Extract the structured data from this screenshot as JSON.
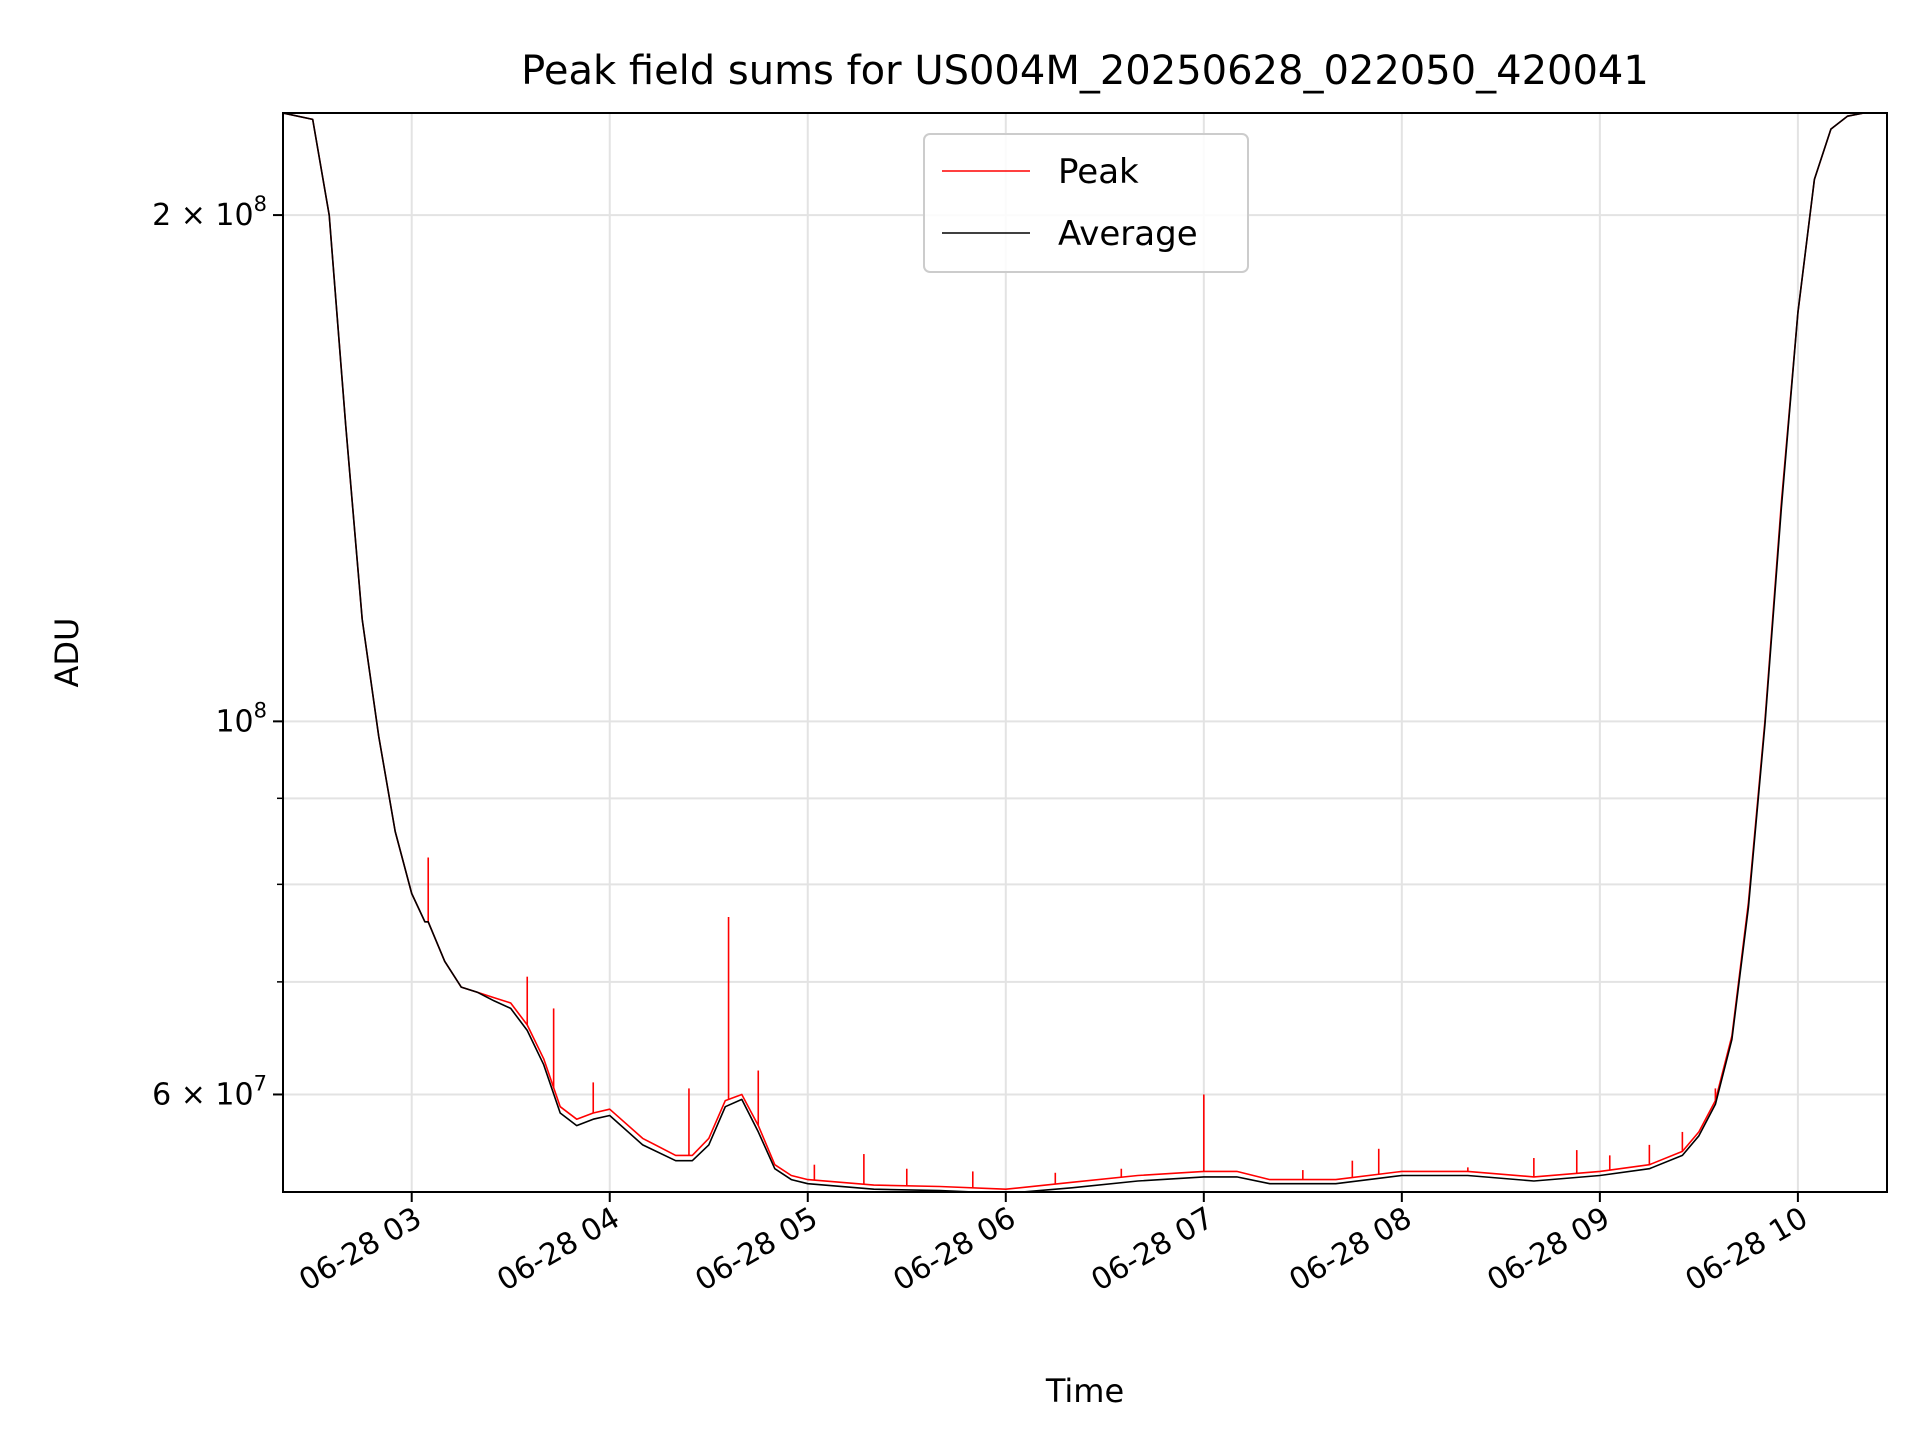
{
  "chart_data": {
    "type": "line",
    "title": "Peak field sums for US004M_20250628_022050_420041",
    "xlabel": "Time",
    "ylabel": "ADU",
    "y_scale": "log",
    "ylim": [
      52500000,
      230000000
    ],
    "x_format": "MM-DD HH",
    "xlim": [
      "2025-06-28T02:21:00",
      "2025-06-28T10:27:00"
    ],
    "x_ticks": [
      {
        "value": "2025-06-28T03:00:00",
        "label": "06-28 03"
      },
      {
        "value": "2025-06-28T04:00:00",
        "label": "06-28 04"
      },
      {
        "value": "2025-06-28T05:00:00",
        "label": "06-28 05"
      },
      {
        "value": "2025-06-28T06:00:00",
        "label": "06-28 06"
      },
      {
        "value": "2025-06-28T07:00:00",
        "label": "06-28 07"
      },
      {
        "value": "2025-06-28T08:00:00",
        "label": "06-28 08"
      },
      {
        "value": "2025-06-28T09:00:00",
        "label": "06-28 09"
      },
      {
        "value": "2025-06-28T10:00:00",
        "label": "06-28 10"
      }
    ],
    "y_ticks": [
      {
        "value": 60000000,
        "base": "6",
        "exp": "7"
      },
      {
        "value": 100000000,
        "base": "",
        "exp": "8"
      },
      {
        "value": 200000000,
        "base": "2",
        "exp": "8"
      }
    ],
    "y_minor_ticks": [
      70000000,
      80000000,
      90000000
    ],
    "grid": true,
    "legend_position": "top-center",
    "series": [
      {
        "name": "Peak",
        "color": "#ff0000",
        "x": [
          "2025-06-28T02:21:00",
          "2025-06-28T02:30:00",
          "2025-06-28T02:35:00",
          "2025-06-28T02:40:00",
          "2025-06-28T02:45:00",
          "2025-06-28T02:50:00",
          "2025-06-28T02:55:00",
          "2025-06-28T03:00:00",
          "2025-06-28T03:04:00",
          "2025-06-28T03:05:00",
          "2025-06-28T03:10:00",
          "2025-06-28T03:15:00",
          "2025-06-28T03:20:00",
          "2025-06-28T03:25:00",
          "2025-06-28T03:30:00",
          "2025-06-28T03:35:00",
          "2025-06-28T03:40:00",
          "2025-06-28T03:45:00",
          "2025-06-28T03:50:00",
          "2025-06-28T03:55:00",
          "2025-06-28T04:00:00",
          "2025-06-28T04:10:00",
          "2025-06-28T04:20:00",
          "2025-06-28T04:25:00",
          "2025-06-28T04:30:00",
          "2025-06-28T04:35:00",
          "2025-06-28T04:40:00",
          "2025-06-28T04:45:00",
          "2025-06-28T04:50:00",
          "2025-06-28T04:55:00",
          "2025-06-28T05:00:00",
          "2025-06-28T05:20:00",
          "2025-06-28T05:40:00",
          "2025-06-28T06:00:00",
          "2025-06-28T06:20:00",
          "2025-06-28T06:40:00",
          "2025-06-28T07:00:00",
          "2025-06-28T07:10:00",
          "2025-06-28T07:20:00",
          "2025-06-28T07:40:00",
          "2025-06-28T08:00:00",
          "2025-06-28T08:20:00",
          "2025-06-28T08:40:00",
          "2025-06-28T09:00:00",
          "2025-06-28T09:15:00",
          "2025-06-28T09:25:00",
          "2025-06-28T09:30:00",
          "2025-06-28T09:35:00",
          "2025-06-28T09:40:00",
          "2025-06-28T09:45:00",
          "2025-06-28T09:50:00",
          "2025-06-28T09:55:00",
          "2025-06-28T10:00:00",
          "2025-06-28T10:05:00",
          "2025-06-28T10:10:00",
          "2025-06-28T10:15:00",
          "2025-06-28T10:20:00",
          "2025-06-28T10:27:00"
        ],
        "y": [
          230000000,
          228000000,
          200000000,
          150000000,
          115000000,
          98000000,
          86000000,
          79000000,
          76000000,
          76000000,
          72000000,
          69500000,
          69000000,
          68500000,
          68000000,
          66000000,
          63000000,
          59000000,
          58000000,
          58500000,
          58800000,
          56500000,
          55200000,
          55200000,
          56500000,
          59500000,
          60000000,
          57500000,
          54500000,
          53700000,
          53400000,
          53000000,
          52900000,
          52700000,
          53200000,
          53700000,
          54000000,
          54000000,
          53400000,
          53400000,
          54000000,
          54000000,
          53600000,
          54000000,
          54500000,
          55500000,
          57000000,
          59500000,
          65000000,
          78000000,
          100000000,
          135000000,
          175000000,
          210000000,
          225000000,
          229000000,
          230000000,
          230000000
        ],
        "spikes": [
          {
            "x": "2025-06-28T03:05:00",
            "y": 83000000
          },
          {
            "x": "2025-06-28T03:35:00",
            "y": 70500000
          },
          {
            "x": "2025-06-28T03:43:00",
            "y": 67500000
          },
          {
            "x": "2025-06-28T03:55:00",
            "y": 61000000
          },
          {
            "x": "2025-06-28T04:24:00",
            "y": 60500000
          },
          {
            "x": "2025-06-28T04:36:00",
            "y": 76500000
          },
          {
            "x": "2025-06-28T04:45:00",
            "y": 62000000
          },
          {
            "x": "2025-06-28T05:02:00",
            "y": 54500000
          },
          {
            "x": "2025-06-28T05:17:00",
            "y": 55300000
          },
          {
            "x": "2025-06-28T05:30:00",
            "y": 54200000
          },
          {
            "x": "2025-06-28T05:50:00",
            "y": 54000000
          },
          {
            "x": "2025-06-28T06:15:00",
            "y": 53900000
          },
          {
            "x": "2025-06-28T06:35:00",
            "y": 54200000
          },
          {
            "x": "2025-06-28T07:00:00",
            "y": 60000000
          },
          {
            "x": "2025-06-28T07:30:00",
            "y": 54100000
          },
          {
            "x": "2025-06-28T07:45:00",
            "y": 54800000
          },
          {
            "x": "2025-06-28T07:53:00",
            "y": 55700000
          },
          {
            "x": "2025-06-28T08:20:00",
            "y": 54300000
          },
          {
            "x": "2025-06-28T08:40:00",
            "y": 55000000
          },
          {
            "x": "2025-06-28T08:53:00",
            "y": 55600000
          },
          {
            "x": "2025-06-28T09:03:00",
            "y": 55200000
          },
          {
            "x": "2025-06-28T09:15:00",
            "y": 56000000
          },
          {
            "x": "2025-06-28T09:25:00",
            "y": 57000000
          },
          {
            "x": "2025-06-28T09:35:00",
            "y": 60500000
          }
        ]
      },
      {
        "name": "Average",
        "color": "#000000",
        "x": [
          "2025-06-28T02:21:00",
          "2025-06-28T02:30:00",
          "2025-06-28T02:35:00",
          "2025-06-28T02:40:00",
          "2025-06-28T02:45:00",
          "2025-06-28T02:50:00",
          "2025-06-28T02:55:00",
          "2025-06-28T03:00:00",
          "2025-06-28T03:04:00",
          "2025-06-28T03:05:00",
          "2025-06-28T03:10:00",
          "2025-06-28T03:15:00",
          "2025-06-28T03:20:00",
          "2025-06-28T03:25:00",
          "2025-06-28T03:30:00",
          "2025-06-28T03:35:00",
          "2025-06-28T03:40:00",
          "2025-06-28T03:45:00",
          "2025-06-28T03:50:00",
          "2025-06-28T03:55:00",
          "2025-06-28T04:00:00",
          "2025-06-28T04:10:00",
          "2025-06-28T04:20:00",
          "2025-06-28T04:25:00",
          "2025-06-28T04:30:00",
          "2025-06-28T04:35:00",
          "2025-06-28T04:40:00",
          "2025-06-28T04:45:00",
          "2025-06-28T04:50:00",
          "2025-06-28T04:55:00",
          "2025-06-28T05:00:00",
          "2025-06-28T05:20:00",
          "2025-06-28T05:40:00",
          "2025-06-28T06:00:00",
          "2025-06-28T06:20:00",
          "2025-06-28T06:40:00",
          "2025-06-28T07:00:00",
          "2025-06-28T07:10:00",
          "2025-06-28T07:20:00",
          "2025-06-28T07:40:00",
          "2025-06-28T08:00:00",
          "2025-06-28T08:20:00",
          "2025-06-28T08:40:00",
          "2025-06-28T09:00:00",
          "2025-06-28T09:15:00",
          "2025-06-28T09:25:00",
          "2025-06-28T09:30:00",
          "2025-06-28T09:35:00",
          "2025-06-28T09:40:00",
          "2025-06-28T09:45:00",
          "2025-06-28T09:50:00",
          "2025-06-28T09:55:00",
          "2025-06-28T10:00:00",
          "2025-06-28T10:05:00",
          "2025-06-28T10:10:00",
          "2025-06-28T10:15:00",
          "2025-06-28T10:20:00",
          "2025-06-28T10:27:00"
        ],
        "y": [
          230000000,
          228000000,
          200000000,
          150000000,
          115000000,
          98000000,
          86000000,
          79000000,
          76000000,
          76000000,
          72000000,
          69500000,
          69000000,
          68200000,
          67500000,
          65500000,
          62500000,
          58500000,
          57500000,
          58000000,
          58300000,
          56000000,
          54800000,
          54800000,
          56000000,
          59000000,
          59600000,
          57000000,
          54200000,
          53400000,
          53100000,
          52700000,
          52600000,
          52400000,
          52800000,
          53300000,
          53600000,
          53600000,
          53100000,
          53100000,
          53700000,
          53700000,
          53300000,
          53700000,
          54200000,
          55200000,
          56700000,
          59200000,
          64700000,
          77500000,
          99500000,
          134000000,
          175000000,
          210000000,
          225000000,
          229000000,
          230000000,
          230000000
        ]
      }
    ]
  }
}
